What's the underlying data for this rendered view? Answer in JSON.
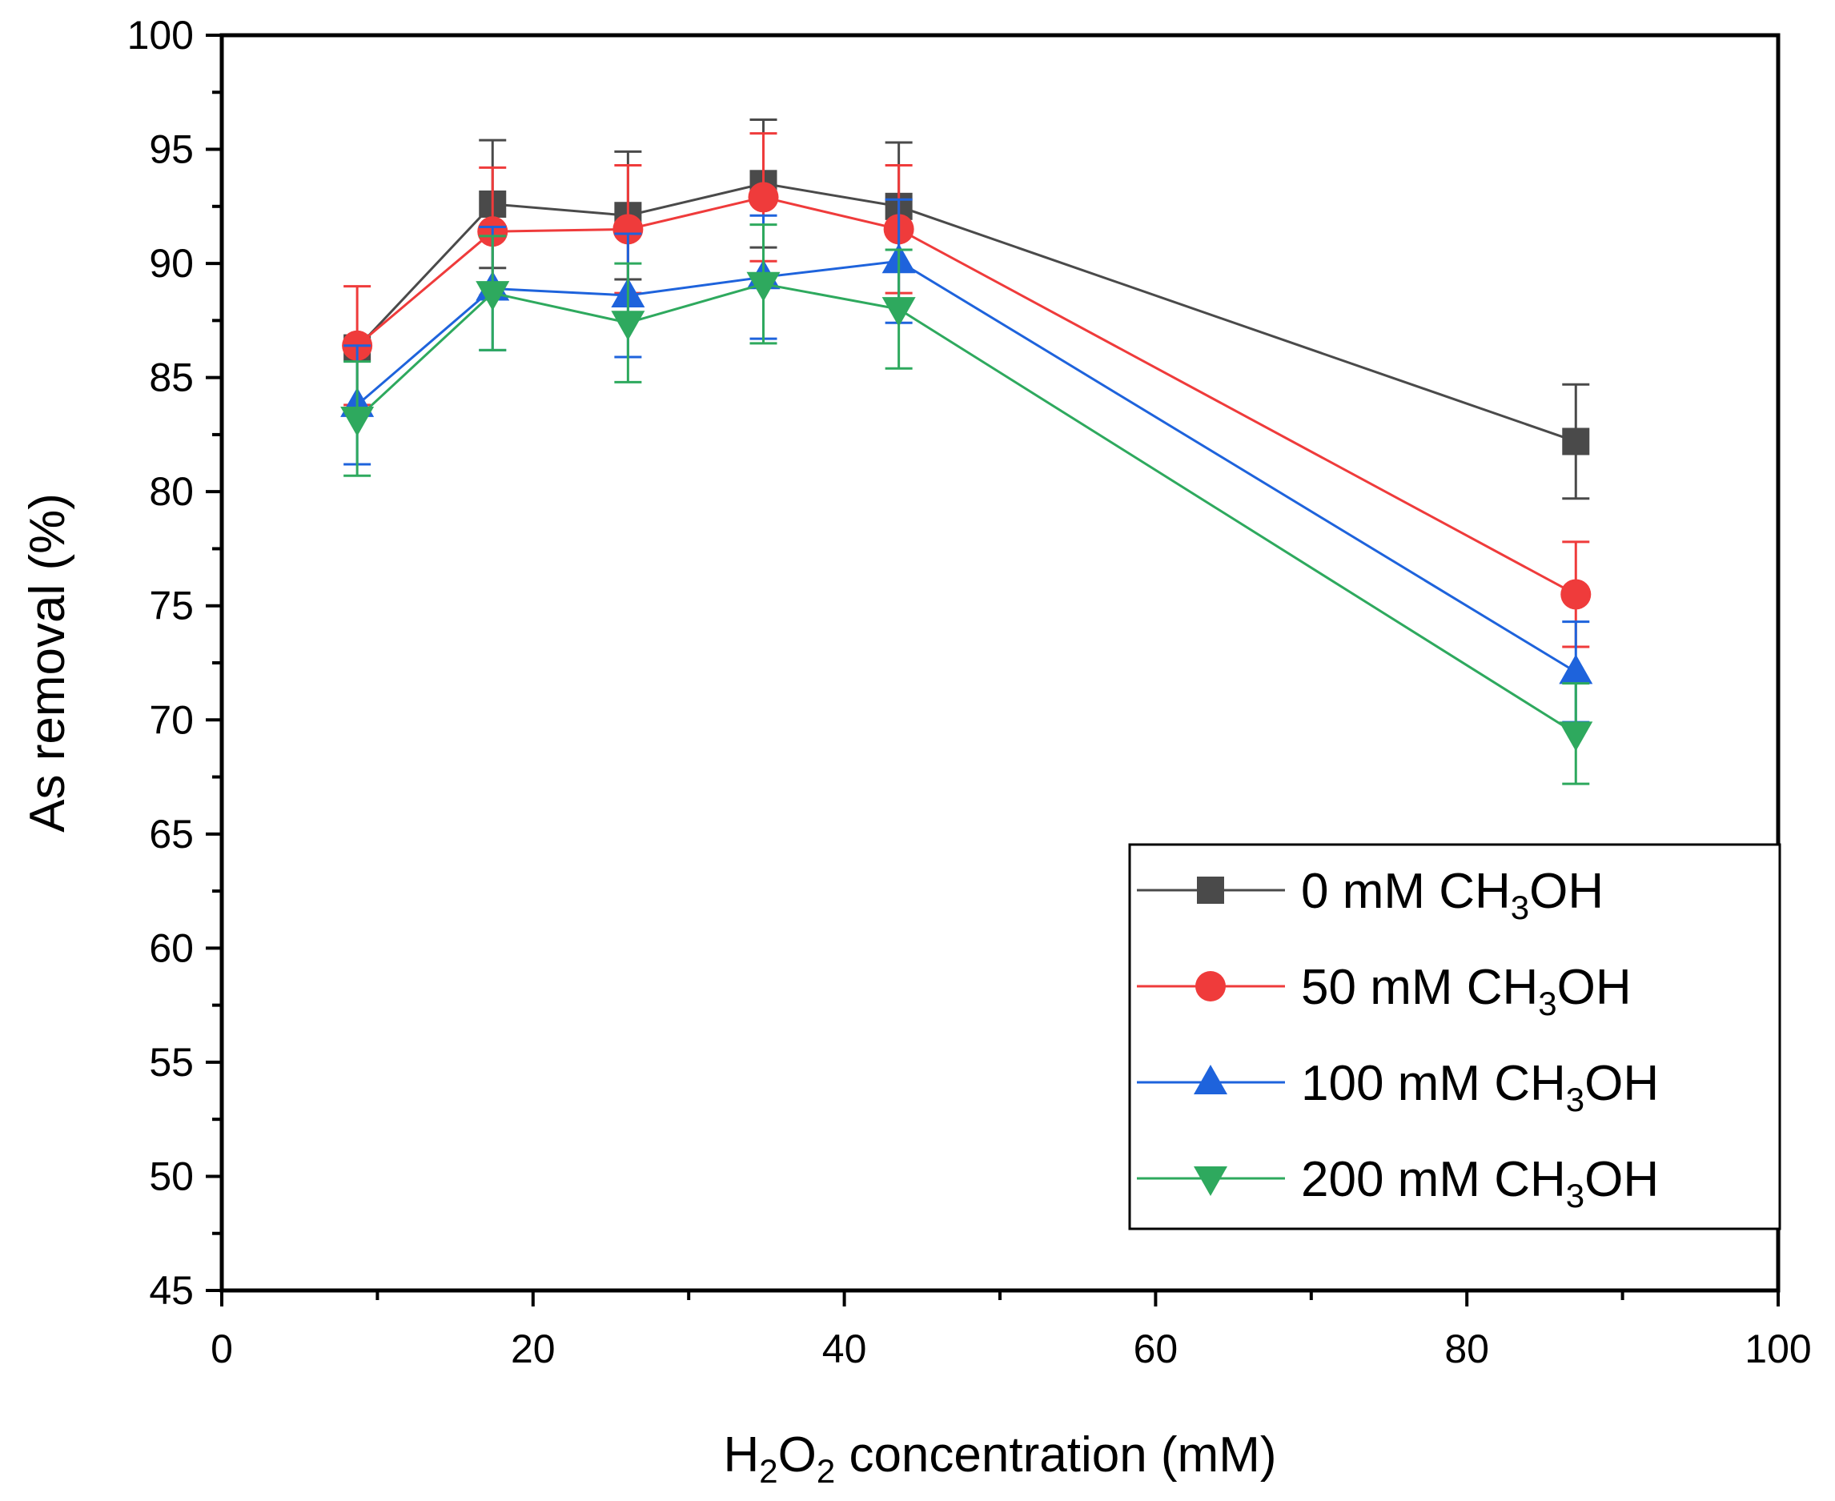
{
  "chart_data": {
    "type": "line",
    "title": "",
    "xlabel": {
      "main": "H",
      "sub1": "2",
      "mid": "O",
      "sub2": "2",
      "rest": " concentration (mM)"
    },
    "ylabel": "As removal (%)",
    "xlim": [
      0,
      100
    ],
    "ylim": [
      45,
      100
    ],
    "x_ticks": [
      0,
      20,
      40,
      60,
      80,
      100
    ],
    "x_tick_labels": [
      "0",
      "20",
      "40",
      "60",
      "80",
      "100"
    ],
    "y_ticks": [
      45,
      50,
      55,
      60,
      65,
      70,
      75,
      80,
      85,
      90,
      95,
      100
    ],
    "y_tick_labels": [
      "45",
      "50",
      "55",
      "60",
      "65",
      "70",
      "75",
      "80",
      "85",
      "90",
      "95",
      "100"
    ],
    "x": [
      8.7,
      17.4,
      26.1,
      34.8,
      43.5,
      87.0
    ],
    "legend_position": "bottom-right",
    "series": [
      {
        "name": "0 mM CH3OH",
        "label_main": "0 mM CH",
        "label_sub": "3",
        "label_tail": "OH",
        "color": "#4a4a4a",
        "marker": "square",
        "values": [
          86.3,
          92.6,
          92.1,
          93.5,
          92.5,
          82.2
        ],
        "errors": [
          0.0,
          2.8,
          2.8,
          2.8,
          2.8,
          2.5
        ]
      },
      {
        "name": "50 mM CH3OH",
        "label_main": "50 mM CH",
        "label_sub": "3",
        "label_tail": "OH",
        "color": "#ef3b3b",
        "marker": "circle",
        "values": [
          86.4,
          91.4,
          91.5,
          92.9,
          91.5,
          75.5
        ],
        "errors": [
          2.6,
          2.8,
          2.8,
          2.8,
          2.8,
          2.3
        ]
      },
      {
        "name": "100 mM CH3OH",
        "label_main": "100 mM CH",
        "label_sub": "3",
        "label_tail": "OH",
        "color": "#1e63dc",
        "marker": "triangle-up",
        "values": [
          83.8,
          88.9,
          88.6,
          89.4,
          90.1,
          72.1
        ],
        "errors": [
          2.6,
          2.7,
          2.7,
          2.7,
          2.7,
          2.2
        ]
      },
      {
        "name": "200 mM CH3OH",
        "label_main": "200 mM CH",
        "label_sub": "3",
        "label_tail": "OH",
        "color": "#2ea95e",
        "marker": "triangle-down",
        "values": [
          83.2,
          88.7,
          87.4,
          89.1,
          88.0,
          69.4
        ],
        "errors": [
          2.5,
          2.5,
          2.6,
          2.6,
          2.6,
          2.2
        ]
      }
    ]
  }
}
